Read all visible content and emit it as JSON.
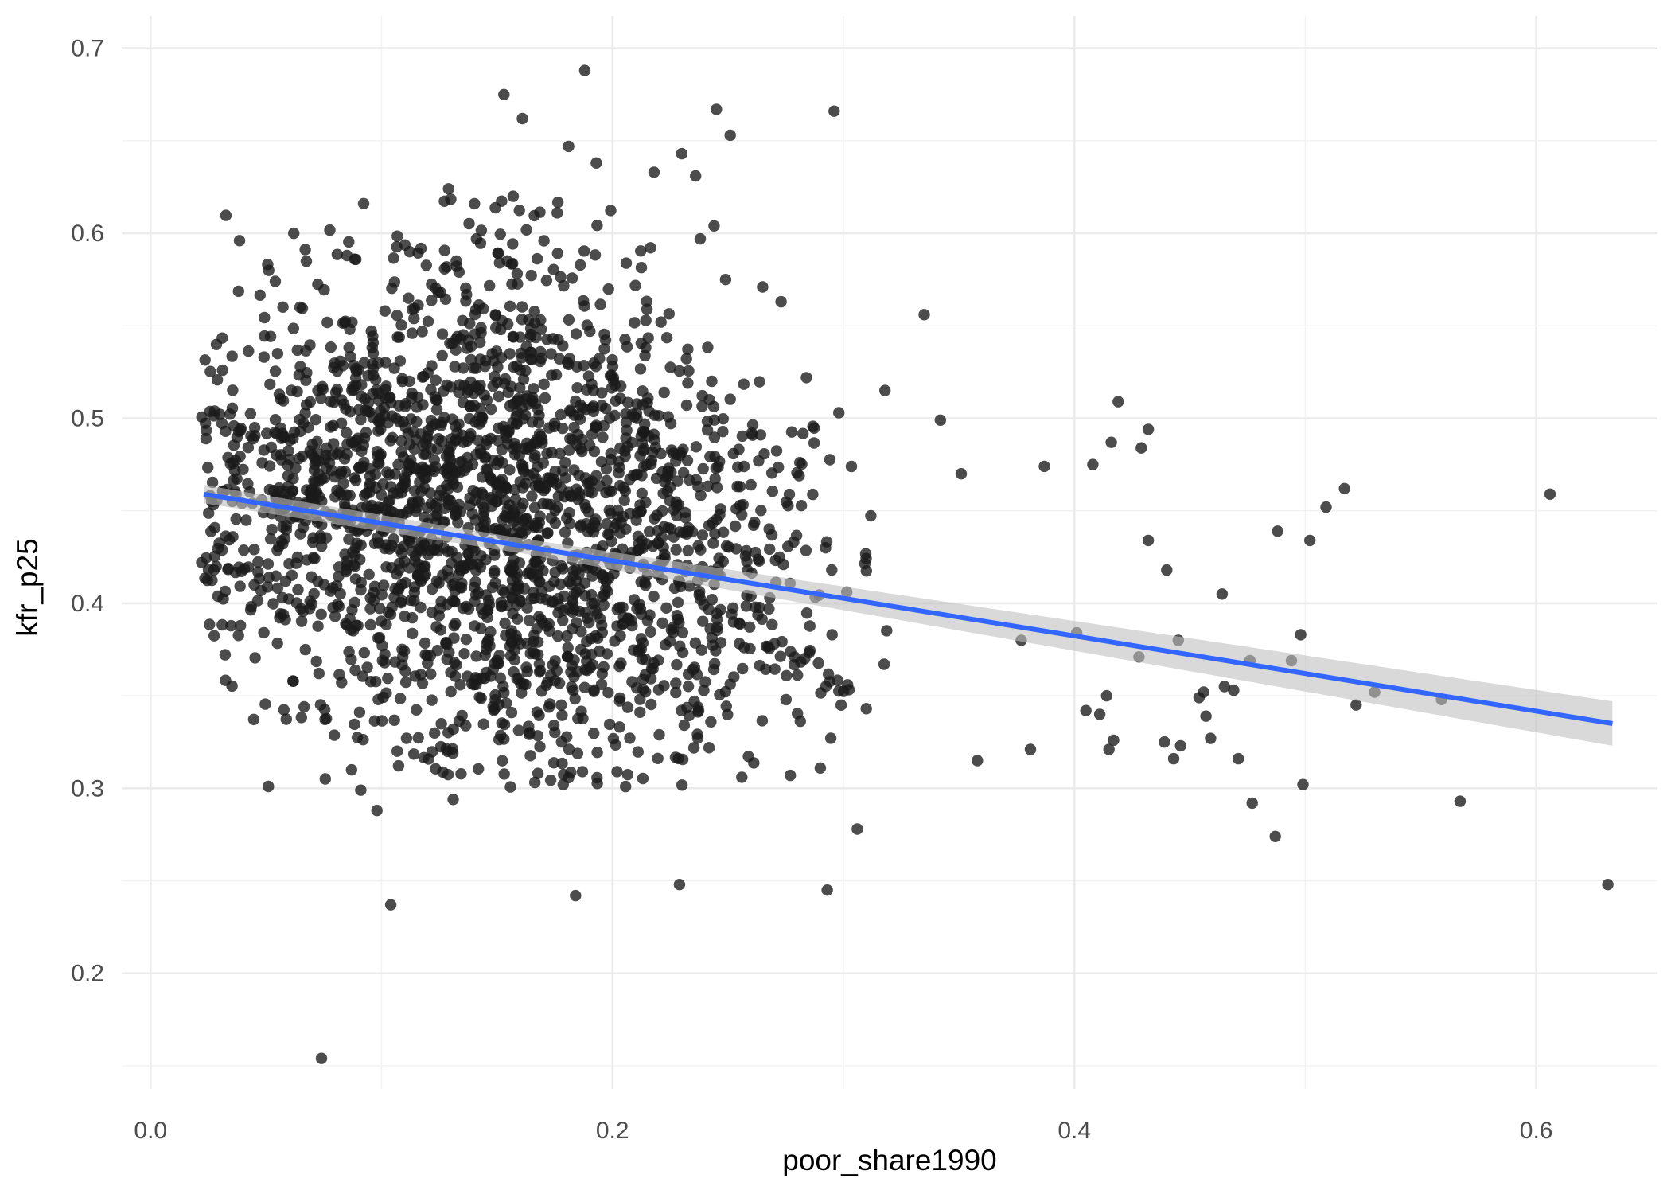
{
  "chart_data": {
    "type": "scatter",
    "xlabel": "poor_share1990",
    "ylabel": "kfr_p25",
    "xlim": [
      -0.0125,
      0.6525
    ],
    "ylim": [
      0.1375,
      0.7175
    ],
    "x_ticks": [
      0.0,
      0.2,
      0.4,
      0.6
    ],
    "x_tick_labels": [
      "0.0",
      "0.2",
      "0.4",
      "0.6"
    ],
    "y_ticks": [
      0.2,
      0.3,
      0.4,
      0.5,
      0.6,
      0.7
    ],
    "y_tick_labels": [
      "0.2",
      "0.3",
      "0.4",
      "0.5",
      "0.6",
      "0.7"
    ],
    "grid": true,
    "legend": "none",
    "colors": {
      "points": "#1a1a1a",
      "trend_line": "#3366ff",
      "confidence_band": "#bfbfbf"
    },
    "notable_points": [
      {
        "x": 0.188,
        "y": 0.688
      },
      {
        "x": 0.153,
        "y": 0.675
      },
      {
        "x": 0.245,
        "y": 0.667
      },
      {
        "x": 0.296,
        "y": 0.666
      },
      {
        "x": 0.161,
        "y": 0.662
      },
      {
        "x": 0.251,
        "y": 0.653
      },
      {
        "x": 0.181,
        "y": 0.647
      },
      {
        "x": 0.23,
        "y": 0.643
      },
      {
        "x": 0.193,
        "y": 0.638
      },
      {
        "x": 0.218,
        "y": 0.633
      },
      {
        "x": 0.236,
        "y": 0.631
      },
      {
        "x": 0.129,
        "y": 0.624
      },
      {
        "x": 0.157,
        "y": 0.62
      },
      {
        "x": 0.244,
        "y": 0.604
      },
      {
        "x": 0.062,
        "y": 0.6
      },
      {
        "x": 0.238,
        "y": 0.597
      },
      {
        "x": 0.085,
        "y": 0.588
      },
      {
        "x": 0.054,
        "y": 0.574
      },
      {
        "x": 0.249,
        "y": 0.575
      },
      {
        "x": 0.265,
        "y": 0.571
      },
      {
        "x": 0.273,
        "y": 0.563
      },
      {
        "x": 0.335,
        "y": 0.556
      },
      {
        "x": 0.221,
        "y": 0.552
      },
      {
        "x": 0.055,
        "y": 0.535
      },
      {
        "x": 0.243,
        "y": 0.52
      },
      {
        "x": 0.284,
        "y": 0.522
      },
      {
        "x": 0.318,
        "y": 0.515
      },
      {
        "x": 0.419,
        "y": 0.509
      },
      {
        "x": 0.298,
        "y": 0.503
      },
      {
        "x": 0.342,
        "y": 0.499
      },
      {
        "x": 0.432,
        "y": 0.494
      },
      {
        "x": 0.024,
        "y": 0.489
      },
      {
        "x": 0.416,
        "y": 0.487
      },
      {
        "x": 0.429,
        "y": 0.484
      },
      {
        "x": 0.387,
        "y": 0.474
      },
      {
        "x": 0.408,
        "y": 0.475
      },
      {
        "x": 0.351,
        "y": 0.47
      },
      {
        "x": 0.517,
        "y": 0.462
      },
      {
        "x": 0.606,
        "y": 0.459
      },
      {
        "x": 0.509,
        "y": 0.452
      },
      {
        "x": 0.488,
        "y": 0.439
      },
      {
        "x": 0.502,
        "y": 0.434
      },
      {
        "x": 0.432,
        "y": 0.434
      },
      {
        "x": 0.44,
        "y": 0.418
      },
      {
        "x": 0.464,
        "y": 0.405
      },
      {
        "x": 0.401,
        "y": 0.384
      },
      {
        "x": 0.498,
        "y": 0.383
      },
      {
        "x": 0.377,
        "y": 0.38
      },
      {
        "x": 0.445,
        "y": 0.38
      },
      {
        "x": 0.476,
        "y": 0.369
      },
      {
        "x": 0.494,
        "y": 0.369
      },
      {
        "x": 0.428,
        "y": 0.371
      },
      {
        "x": 0.559,
        "y": 0.348
      },
      {
        "x": 0.53,
        "y": 0.352
      },
      {
        "x": 0.522,
        "y": 0.345
      },
      {
        "x": 0.465,
        "y": 0.355
      },
      {
        "x": 0.469,
        "y": 0.353
      },
      {
        "x": 0.456,
        "y": 0.352
      },
      {
        "x": 0.454,
        "y": 0.349
      },
      {
        "x": 0.414,
        "y": 0.35
      },
      {
        "x": 0.405,
        "y": 0.342
      },
      {
        "x": 0.411,
        "y": 0.34
      },
      {
        "x": 0.417,
        "y": 0.326
      },
      {
        "x": 0.446,
        "y": 0.323
      },
      {
        "x": 0.457,
        "y": 0.339
      },
      {
        "x": 0.459,
        "y": 0.327
      },
      {
        "x": 0.471,
        "y": 0.316
      },
      {
        "x": 0.443,
        "y": 0.316
      },
      {
        "x": 0.439,
        "y": 0.325
      },
      {
        "x": 0.415,
        "y": 0.321
      },
      {
        "x": 0.381,
        "y": 0.321
      },
      {
        "x": 0.358,
        "y": 0.315
      },
      {
        "x": 0.499,
        "y": 0.302
      },
      {
        "x": 0.477,
        "y": 0.292
      },
      {
        "x": 0.567,
        "y": 0.293
      },
      {
        "x": 0.487,
        "y": 0.274
      },
      {
        "x": 0.631,
        "y": 0.248
      },
      {
        "x": 0.306,
        "y": 0.278
      },
      {
        "x": 0.293,
        "y": 0.245
      },
      {
        "x": 0.229,
        "y": 0.248
      },
      {
        "x": 0.184,
        "y": 0.242
      },
      {
        "x": 0.104,
        "y": 0.237
      },
      {
        "x": 0.051,
        "y": 0.301
      },
      {
        "x": 0.098,
        "y": 0.288
      },
      {
        "x": 0.131,
        "y": 0.294
      },
      {
        "x": 0.091,
        "y": 0.299
      },
      {
        "x": 0.087,
        "y": 0.31
      },
      {
        "x": 0.074,
        "y": 0.154
      },
      {
        "x": 0.256,
        "y": 0.306
      },
      {
        "x": 0.277,
        "y": 0.307
      },
      {
        "x": 0.29,
        "y": 0.311
      },
      {
        "x": 0.202,
        "y": 0.309
      },
      {
        "x": 0.187,
        "y": 0.309
      }
    ],
    "cloud_summary": {
      "n_points": 2300,
      "x_range": [
        0.022,
        0.32
      ],
      "y_range": [
        0.3,
        0.62
      ]
    },
    "trend_line": {
      "method": "linear",
      "x": [
        0.023,
        0.633
      ],
      "y": [
        0.459,
        0.335
      ],
      "ci_halfwidth": [
        0.004,
        0.012
      ]
    }
  }
}
